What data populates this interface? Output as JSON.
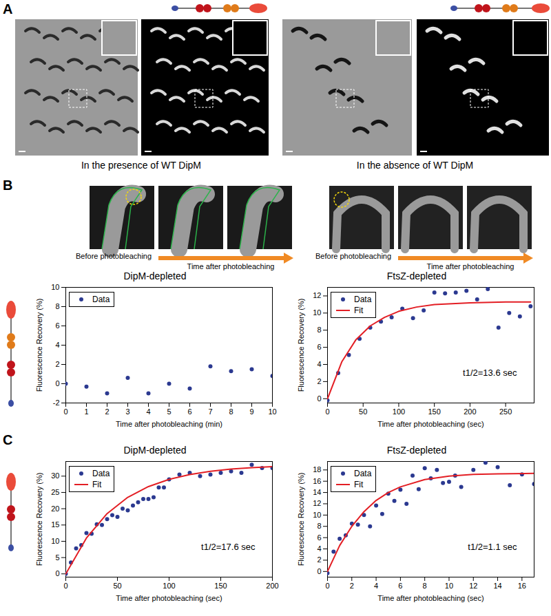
{
  "figure": {
    "panel_labels": [
      "A",
      "B",
      "C"
    ],
    "panel_A": {
      "captions": [
        "In the presence of WT DipM",
        "In the absence of WT DipM"
      ]
    },
    "panel_B": {
      "image_rows": [
        {
          "before": "Before photobleaching",
          "after": "Time after photobleaching"
        },
        {
          "before": "Before photobleaching",
          "after": "Time after photobleaching"
        }
      ]
    }
  },
  "chart_data": [
    {
      "type": "scatter",
      "title": "DipM-depleted",
      "x_label": "Time after photobleaching (min)",
      "y_label": "Fluorescence Recovery (%)",
      "xlim": [
        0,
        10
      ],
      "xticks": [
        0,
        1,
        2,
        3,
        4,
        5,
        6,
        7,
        8,
        9,
        10
      ],
      "ylim": [
        -2,
        10
      ],
      "yticks": [
        -2,
        0,
        2,
        4,
        6,
        8,
        10
      ],
      "legend": "top-left",
      "series": [
        {
          "name": "Data",
          "color": "#2b3990",
          "marker": "circle",
          "x": [
            0,
            1,
            2,
            3,
            4,
            5,
            6,
            7,
            8,
            9,
            10
          ],
          "values": [
            0,
            -0.3,
            -1,
            0.6,
            -1,
            0,
            -0.5,
            1.8,
            1.3,
            1.5,
            0.8
          ]
        }
      ]
    },
    {
      "type": "scatter",
      "title": "FtsZ-depleted",
      "x_label": "Time after photobleaching (sec)",
      "y_label": "Fluorescence Recovery (%)",
      "xlim": [
        0,
        290
      ],
      "xticks": [
        0,
        50,
        100,
        150,
        200,
        250
      ],
      "ylim": [
        -0.5,
        13
      ],
      "yticks": [
        0,
        2,
        4,
        6,
        8,
        10,
        12
      ],
      "legend": "top-left",
      "annotation": "t1/2=13.6 sec",
      "series": [
        {
          "name": "Data",
          "color": "#2b3990",
          "marker": "circle",
          "x": [
            0,
            15,
            30,
            45,
            60,
            75,
            90,
            105,
            120,
            135,
            150,
            165,
            180,
            195,
            210,
            225,
            240,
            255,
            270,
            285
          ],
          "values": [
            -0.2,
            3,
            5.1,
            7,
            8.3,
            9,
            9.5,
            10.5,
            9.4,
            10.3,
            12.4,
            12.3,
            12.4,
            12.6,
            11.6,
            12.8,
            8.3,
            10,
            9.6,
            10.8
          ]
        },
        {
          "name": "Fit",
          "type": "line",
          "color": "#e31e24",
          "line_style": "solid",
          "x": [
            0,
            20,
            40,
            60,
            80,
            100,
            125,
            150,
            200,
            250,
            285
          ],
          "values": [
            0,
            4.3,
            6.9,
            8.5,
            9.5,
            10.2,
            10.7,
            11.0,
            11.2,
            11.3,
            11.3
          ]
        }
      ]
    },
    {
      "type": "scatter",
      "title": "DipM-depleted",
      "x_label": "Time after photobleaching (sec)",
      "y_label": "Fluorescence Recovery (%)",
      "xlim": [
        0,
        200
      ],
      "xticks": [
        0,
        50,
        100,
        150,
        200
      ],
      "ylim": [
        -1,
        34.5
      ],
      "yticks": [
        0,
        5,
        10,
        15,
        20,
        25,
        30
      ],
      "legend": "top-left",
      "annotation": "t1/2=17.6 sec",
      "series": [
        {
          "name": "Data",
          "color": "#2b3990",
          "marker": "circle",
          "x": [
            0,
            5,
            10,
            15,
            20,
            25,
            30,
            35,
            40,
            45,
            50,
            55,
            60,
            65,
            70,
            75,
            80,
            85,
            90,
            95,
            100,
            110,
            120,
            130,
            140,
            150,
            160,
            170,
            180,
            190,
            200
          ],
          "values": [
            0,
            3.5,
            7.8,
            8.8,
            12.5,
            12.3,
            15.2,
            15,
            16.8,
            18,
            17.5,
            20,
            19.5,
            21,
            22,
            23,
            23,
            23.5,
            26.5,
            26.5,
            29,
            30.5,
            31,
            30,
            30.5,
            31,
            31.5,
            31,
            33.5,
            32.5,
            32.5
          ]
        },
        {
          "name": "Fit",
          "type": "line",
          "color": "#e31e24",
          "line_style": "solid",
          "x": [
            0,
            20,
            40,
            60,
            80,
            100,
            120,
            140,
            160,
            180,
            200
          ],
          "values": [
            0,
            11,
            18.5,
            23.5,
            26.8,
            29,
            30.5,
            31.5,
            32.2,
            32.6,
            32.9
          ]
        }
      ]
    },
    {
      "type": "scatter",
      "title": "FtsZ-depleted",
      "x_label": "Time after photobleaching (sec)",
      "y_label": "Fluorescence Recovery (%)",
      "xlim": [
        0,
        17
      ],
      "xticks": [
        0,
        2,
        4,
        6,
        8,
        10,
        12,
        14,
        16
      ],
      "ylim": [
        -1,
        19.5
      ],
      "yticks": [
        0,
        2,
        4,
        6,
        8,
        10,
        12,
        14,
        16,
        18
      ],
      "legend": "top-left",
      "annotation": "t1/2=1.1 sec",
      "series": [
        {
          "name": "Data",
          "color": "#2b3990",
          "marker": "circle",
          "x": [
            0,
            0.5,
            1,
            1.5,
            2,
            2.5,
            3,
            3.5,
            4,
            4.5,
            5,
            5.5,
            6,
            6.5,
            7,
            7.5,
            8,
            8.5,
            9,
            9.5,
            10,
            10.5,
            11,
            12,
            13,
            14,
            15,
            16,
            17
          ],
          "values": [
            -0.3,
            3.5,
            5.8,
            6.4,
            8.5,
            8.3,
            10,
            8,
            11.7,
            10.2,
            13.8,
            12.5,
            14.5,
            12,
            17,
            14.6,
            18.3,
            16.5,
            18,
            15.7,
            15.9,
            17,
            15,
            18,
            19.3,
            18.5,
            15.3,
            17.2,
            15.5
          ]
        },
        {
          "name": "Fit",
          "type": "line",
          "color": "#e31e24",
          "line_style": "solid",
          "x": [
            0,
            1,
            2,
            3,
            4,
            5,
            6,
            8,
            10,
            12,
            14,
            17
          ],
          "values": [
            0,
            4.6,
            8.0,
            10.6,
            12.6,
            14,
            15,
            16.3,
            16.9,
            17.2,
            17.3,
            17.4
          ]
        }
      ]
    }
  ]
}
